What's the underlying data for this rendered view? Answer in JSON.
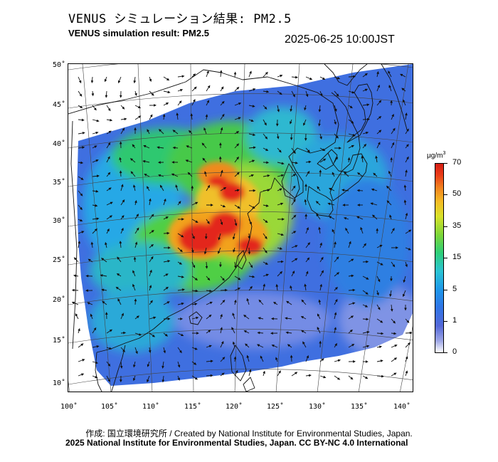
{
  "header": {
    "title_jp": "VENUS シミュレーション結果: PM2.5",
    "title_en": "VENUS simulation result: PM2.5",
    "timestamp": "2025-06-25 10:00JST"
  },
  "map": {
    "lat_labels": [
      "50˚",
      "45˚",
      "40˚",
      "35˚",
      "30˚",
      "25˚",
      "20˚",
      "15˚",
      "10˚"
    ],
    "lon_labels": [
      "100˚",
      "105˚",
      "110˚",
      "115˚",
      "120˚",
      "125˚",
      "130˚",
      "135˚",
      "140˚"
    ],
    "colors": {
      "clean": "#3f6fe0",
      "moderate": "#2fc870",
      "high": "#f2a21f",
      "peak": "#e3261a",
      "coast": "#111111",
      "grid": "#444444"
    }
  },
  "colorbar": {
    "unit_prefix": "μg/m",
    "unit_sup": "3",
    "ticks": [
      "70",
      "50",
      "35",
      "15",
      "5",
      "1",
      "0"
    ]
  },
  "credits": {
    "line1": "作成: 国立環境研究所 / Created by National Institute for Environmental Studies, Japan.",
    "line2": "2025 National Institute for Environmental Studies, Japan. CC BY-NC 4.0 International"
  }
}
